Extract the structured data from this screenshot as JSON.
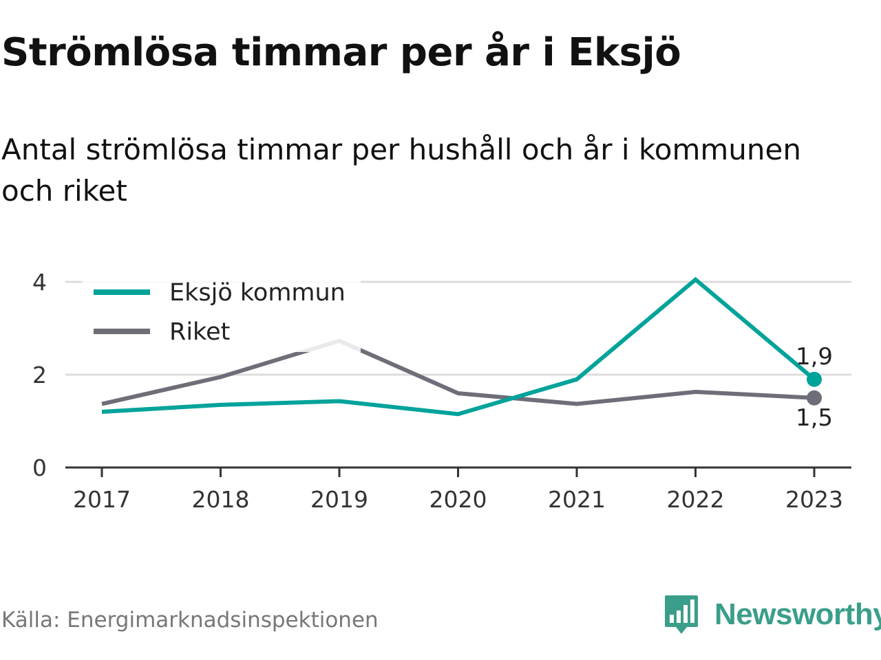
{
  "header": {
    "title": "Strömlösa timmar per år i Eksjö",
    "subtitle": "Antal strömlösa timmar per hushåll och år i kommunen och riket"
  },
  "footer": {
    "source": "Källa: Energimarknadsinspektionen",
    "brand": "Newsworthy",
    "brand_icon": "bar-chart-speech-bubble-icon"
  },
  "colors": {
    "eksjo": "#00a39a",
    "riket": "#6e6e78",
    "grid": "#dddddd",
    "axis": "#333333",
    "brand": "#3a9e8a"
  },
  "chart_data": {
    "type": "line",
    "title": "Strömlösa timmar per år i Eksjö",
    "subtitle": "Antal strömlösa timmar per hushåll och år i kommunen och riket",
    "xlabel": "",
    "ylabel": "",
    "categories": [
      "2017",
      "2018",
      "2019",
      "2020",
      "2021",
      "2022",
      "2023"
    ],
    "ylim": [
      0,
      4
    ],
    "yticks": [
      "0",
      "2",
      "4"
    ],
    "grid": true,
    "legend_position": "top-left",
    "series": [
      {
        "name": "Eksjö kommun",
        "values": [
          1.2,
          1.35,
          1.43,
          1.15,
          1.9,
          4.05,
          1.9
        ],
        "end_label": "1,9"
      },
      {
        "name": "Riket",
        "values": [
          1.37,
          1.95,
          2.73,
          1.6,
          1.37,
          1.63,
          1.5
        ],
        "end_label": "1,5"
      }
    ]
  }
}
